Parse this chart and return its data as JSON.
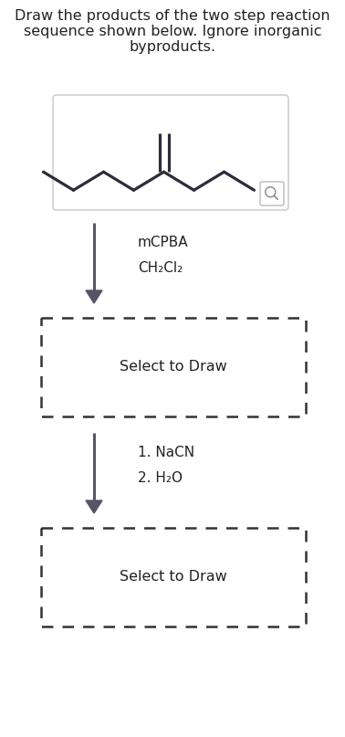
{
  "title_line1": "Draw the products of the two step reaction",
  "title_line2": "sequence shown below. Ignore inorganic",
  "title_line3": "byproducts.",
  "reagent1_line1": "mCPBA",
  "reagent1_line2": "CH₂Cl₂",
  "reagent2_line1": "1. NaCN",
  "reagent2_line2": "2. H₂O",
  "select_draw": "Select to Draw",
  "background": "#ffffff",
  "text_color": "#222222",
  "box_edge_color": "#333333",
  "molecule_color": "#2c2c3a",
  "arrow_color": "#555566",
  "mol_box_edge": "#c8c8c8",
  "mol_box_face": "#ffffff",
  "title_fontsize": 11.5,
  "reagent_fontsize": 11.0,
  "select_fontsize": 11.5,
  "arrow_lw": 2.2,
  "mol_lw": 2.3
}
